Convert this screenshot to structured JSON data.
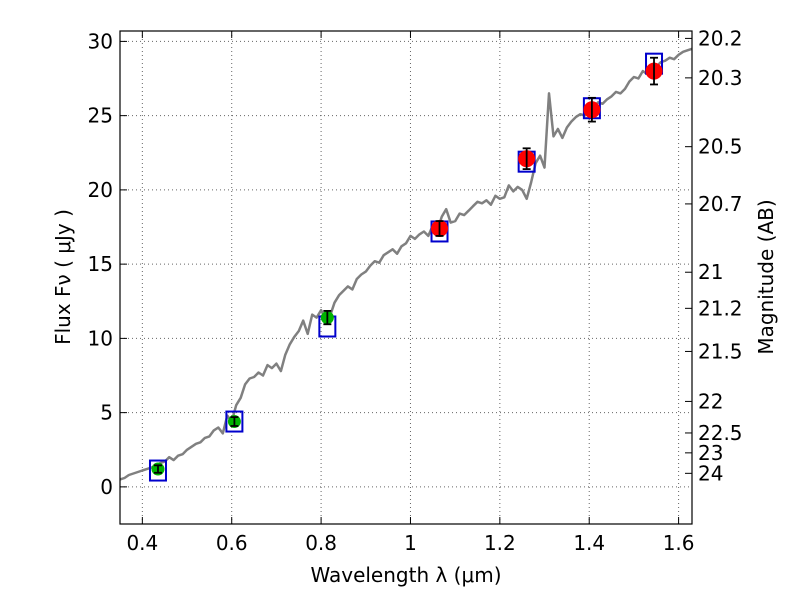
{
  "chart_data": {
    "type": "line",
    "title": "",
    "xlabel": "Wavelength  λ (μm)",
    "ylabel": "Flux  Fν  ( μJy )",
    "ylabel_right": "Magnitude (AB)",
    "xlim": [
      0.35,
      1.63
    ],
    "ylim": [
      -2.5,
      30.7
    ],
    "grid": true,
    "x_ticks": [
      0.4,
      0.6,
      0.8,
      1.0,
      1.2,
      1.4,
      1.6
    ],
    "x_tick_labels": [
      "0.4",
      "0.6",
      "0.8",
      "1",
      "1.2",
      "1.4",
      "1.6"
    ],
    "y_ticks": [
      0,
      5,
      10,
      15,
      20,
      25,
      30
    ],
    "y_tick_labels": [
      "0",
      "5",
      "10",
      "15",
      "20",
      "25",
      "30"
    ],
    "right_ticks": [
      {
        "label": "20.2",
        "mag": 20.2
      },
      {
        "label": "20.3",
        "mag": 20.3
      },
      {
        "label": "20.5",
        "mag": 20.5
      },
      {
        "label": "20.7",
        "mag": 20.7
      },
      {
        "label": "21",
        "mag": 21.0
      },
      {
        "label": "21.2",
        "mag": 21.2
      },
      {
        "label": "21.5",
        "mag": 21.5
      },
      {
        "label": "22",
        "mag": 22.0
      },
      {
        "label": "22.5",
        "mag": 22.5
      },
      {
        "label": "23",
        "mag": 23.0
      },
      {
        "label": "24",
        "mag": 24.0
      }
    ],
    "colors": {
      "model": "#808080",
      "model_box": "#0000cc",
      "optical": "#00b300",
      "nir": "#ff0000",
      "errorbar": "#000000",
      "grid": "#666666"
    },
    "series": [
      {
        "name": "model spectrum",
        "type": "line",
        "x": [
          0.35,
          0.36,
          0.37,
          0.38,
          0.39,
          0.4,
          0.41,
          0.42,
          0.43,
          0.44,
          0.45,
          0.46,
          0.47,
          0.48,
          0.49,
          0.5,
          0.51,
          0.52,
          0.53,
          0.54,
          0.55,
          0.56,
          0.57,
          0.58,
          0.59,
          0.6,
          0.61,
          0.62,
          0.63,
          0.64,
          0.65,
          0.66,
          0.67,
          0.68,
          0.69,
          0.7,
          0.71,
          0.72,
          0.73,
          0.74,
          0.75,
          0.76,
          0.77,
          0.78,
          0.79,
          0.8,
          0.81,
          0.82,
          0.83,
          0.84,
          0.85,
          0.86,
          0.87,
          0.88,
          0.89,
          0.9,
          0.91,
          0.92,
          0.93,
          0.94,
          0.95,
          0.96,
          0.97,
          0.98,
          0.99,
          1.0,
          1.01,
          1.02,
          1.03,
          1.04,
          1.05,
          1.06,
          1.07,
          1.08,
          1.09,
          1.1,
          1.11,
          1.12,
          1.13,
          1.14,
          1.15,
          1.16,
          1.17,
          1.18,
          1.19,
          1.2,
          1.21,
          1.22,
          1.23,
          1.24,
          1.25,
          1.26,
          1.27,
          1.28,
          1.29,
          1.3,
          1.31,
          1.32,
          1.33,
          1.34,
          1.35,
          1.36,
          1.37,
          1.38,
          1.39,
          1.4,
          1.41,
          1.42,
          1.43,
          1.44,
          1.45,
          1.46,
          1.47,
          1.48,
          1.49,
          1.5,
          1.51,
          1.52,
          1.53,
          1.54,
          1.55,
          1.56,
          1.57,
          1.58,
          1.59,
          1.6,
          1.61,
          1.62,
          1.63
        ],
        "y": [
          0.5,
          0.6,
          0.8,
          0.9,
          1.0,
          1.1,
          1.2,
          1.3,
          1.4,
          1.6,
          1.7,
          2.0,
          1.8,
          2.1,
          2.2,
          2.5,
          2.7,
          2.9,
          3.0,
          3.3,
          3.4,
          3.8,
          4.0,
          3.6,
          4.8,
          4.4,
          5.5,
          6.0,
          6.9,
          7.3,
          7.4,
          7.7,
          7.5,
          8.2,
          8.0,
          8.3,
          7.8,
          8.9,
          9.6,
          10.1,
          10.5,
          11.2,
          10.3,
          11.6,
          11.4,
          11.9,
          11.3,
          11.5,
          12.4,
          12.9,
          13.2,
          13.5,
          13.3,
          14.0,
          14.3,
          14.5,
          14.9,
          15.2,
          15.1,
          15.6,
          15.8,
          16.0,
          15.7,
          16.2,
          16.4,
          16.9,
          16.7,
          17.0,
          17.2,
          16.9,
          17.6,
          17.3,
          18.2,
          18.7,
          17.8,
          17.9,
          18.4,
          18.3,
          18.6,
          18.9,
          19.2,
          19.1,
          19.3,
          19.0,
          19.6,
          19.4,
          19.5,
          20.3,
          19.9,
          20.2,
          20.0,
          19.4,
          20.5,
          21.8,
          22.3,
          21.5,
          26.5,
          23.6,
          24.1,
          23.5,
          24.2,
          24.6,
          24.9,
          25.1,
          25.0,
          25.3,
          25.6,
          25.9,
          25.8,
          26.1,
          26.3,
          26.6,
          26.5,
          26.8,
          27.3,
          27.6,
          27.5,
          28.0,
          27.8,
          28.1,
          28.3,
          28.6,
          28.7,
          28.9,
          28.8,
          29.1,
          29.3,
          29.4,
          29.5
        ]
      },
      {
        "name": "model synthetic photometry",
        "type": "square",
        "x": [
          0.435,
          0.606,
          0.814,
          1.065,
          1.26,
          1.406,
          1.545
        ],
        "y": [
          1.1,
          4.4,
          10.8,
          17.2,
          21.9,
          25.5,
          28.5
        ]
      },
      {
        "name": "optical photometry",
        "type": "scatter",
        "x": [
          0.435,
          0.606,
          0.814
        ],
        "y": [
          1.2,
          4.4,
          11.4
        ],
        "err": [
          0.25,
          0.3,
          0.45
        ]
      },
      {
        "name": "near-IR photometry",
        "type": "scatter",
        "x": [
          1.065,
          1.26,
          1.406,
          1.545
        ],
        "y": [
          17.4,
          22.1,
          25.4,
          28.0
        ],
        "err": [
          0.5,
          0.7,
          0.8,
          0.9
        ]
      }
    ]
  }
}
